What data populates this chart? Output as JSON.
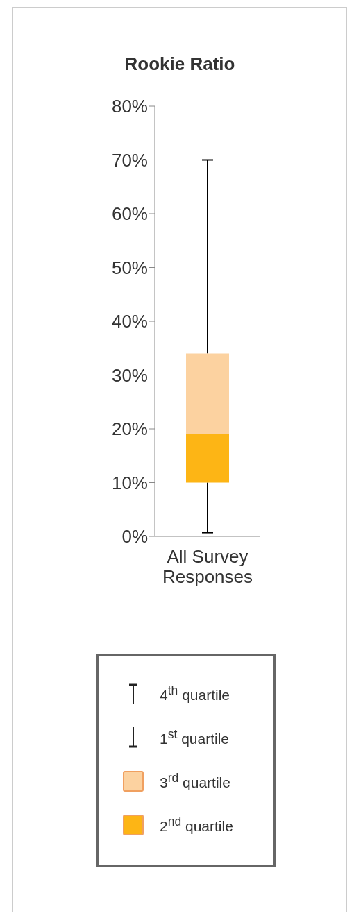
{
  "chart_data": {
    "type": "box",
    "title": "Rookie Ratio",
    "categories": [
      "All Survey Responses"
    ],
    "boxes": [
      {
        "low": 0.7,
        "q1": 10,
        "median": 19,
        "q3": 34,
        "high": 70
      }
    ],
    "colors": [
      [
        "#fdb515",
        "#fcd2a0"
      ]
    ],
    "ylim": [
      0,
      80
    ],
    "yticks": [
      {
        "value": 0,
        "label": "0%"
      },
      {
        "value": 10,
        "label": "10%"
      },
      {
        "value": 20,
        "label": "20%"
      },
      {
        "value": 30,
        "label": "30%"
      },
      {
        "value": 40,
        "label": "40%"
      },
      {
        "value": 50,
        "label": "50%"
      },
      {
        "value": 60,
        "label": "60%"
      },
      {
        "value": 70,
        "label": "70%"
      },
      {
        "value": 80,
        "label": "80%"
      }
    ],
    "annotations": [
      "4$^{th}$ quartile",
      "1$^{st}$ quartile",
      "3$^{rd}$ quartile",
      "2$^{nd}$ quartile"
    ]
  }
}
